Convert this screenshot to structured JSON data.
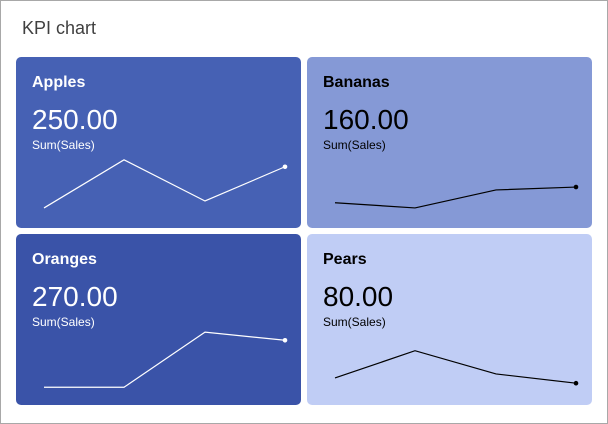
{
  "title": "KPI chart",
  "chart_data": {
    "type": "line",
    "title": "KPI chart",
    "kpis": [
      {
        "name": "Apples",
        "value": "250.00",
        "measure": "Sum(Sales)",
        "bg": "#4661b4",
        "fg": "#ffffff",
        "trend": [
          7,
          90,
          19,
          78
        ]
      },
      {
        "name": "Bananas",
        "value": "160.00",
        "measure": "Sum(Sales)",
        "bg": "#8599d6",
        "fg": "#000000",
        "trend": [
          16,
          7,
          38,
          43
        ]
      },
      {
        "name": "Oranges",
        "value": "270.00",
        "measure": "Sum(Sales)",
        "bg": "#3a53a8",
        "fg": "#ffffff",
        "trend": [
          3,
          3,
          98,
          84
        ]
      },
      {
        "name": "Pears",
        "value": "80.00",
        "measure": "Sum(Sales)",
        "bg": "#c0cdf5",
        "fg": "#000000",
        "trend": [
          19,
          66,
          26,
          10
        ]
      }
    ]
  }
}
